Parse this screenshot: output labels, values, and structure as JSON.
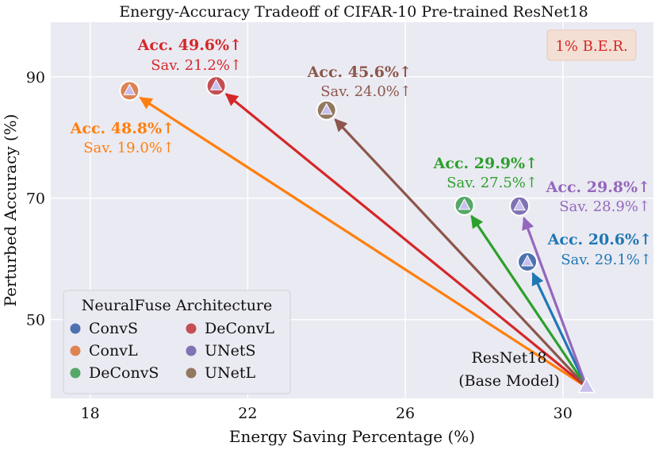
{
  "chart_data": {
    "type": "scatter",
    "title": "Energy-Accuracy Tradeoff of CIFAR-10 Pre-trained ResNet18",
    "xlabel": "Energy Saving Percentage (%)",
    "ylabel": "Perturbed Accuracy (%)",
    "xlim": [
      17,
      32.3
    ],
    "ylim": [
      37,
      99
    ],
    "xticks": [
      18,
      22,
      26,
      30
    ],
    "yticks": [
      50,
      70,
      90
    ],
    "grid": true,
    "legend": {
      "title": "NeuralFuse Architecture",
      "placement": "bottom-left"
    },
    "badge": "1% B.E.R.",
    "base_point": {
      "x": 30.6,
      "y": 38.9,
      "label_line1": "ResNet18",
      "label_line2": "(Base Model)"
    },
    "series": [
      {
        "name": "ConvS",
        "color": "#4c72b0",
        "x": 29.1,
        "y": 59.5,
        "acc": "Acc. 20.6%↑",
        "sav": "Sav. 29.1%↑",
        "text_color": "#1f77b4"
      },
      {
        "name": "ConvL",
        "color": "#dd8452",
        "x": 19.0,
        "y": 87.7,
        "acc": "Acc. 48.8%↑",
        "sav": "Sav. 19.0%↑",
        "text_color": "#ff7f0e"
      },
      {
        "name": "DeConvS",
        "color": "#55a868",
        "x": 27.5,
        "y": 68.8,
        "acc": "Acc. 29.9%↑",
        "sav": "Sav. 27.5%↑",
        "text_color": "#2ca02c"
      },
      {
        "name": "DeConvL",
        "color": "#c44e52",
        "x": 21.2,
        "y": 88.5,
        "acc": "Acc. 49.6%↑",
        "sav": "Sav. 21.2%↑",
        "text_color": "#d62728"
      },
      {
        "name": "UNetS",
        "color": "#8172b3",
        "x": 28.9,
        "y": 68.7,
        "acc": "Acc. 29.8%↑",
        "sav": "Sav. 28.9%↑",
        "text_color": "#9467bd"
      },
      {
        "name": "UNetL",
        "color": "#937860",
        "x": 24.0,
        "y": 84.5,
        "acc": "Acc. 45.6%↑",
        "sav": "Sav. 24.0%↑",
        "text_color": "#8c564b"
      }
    ]
  }
}
